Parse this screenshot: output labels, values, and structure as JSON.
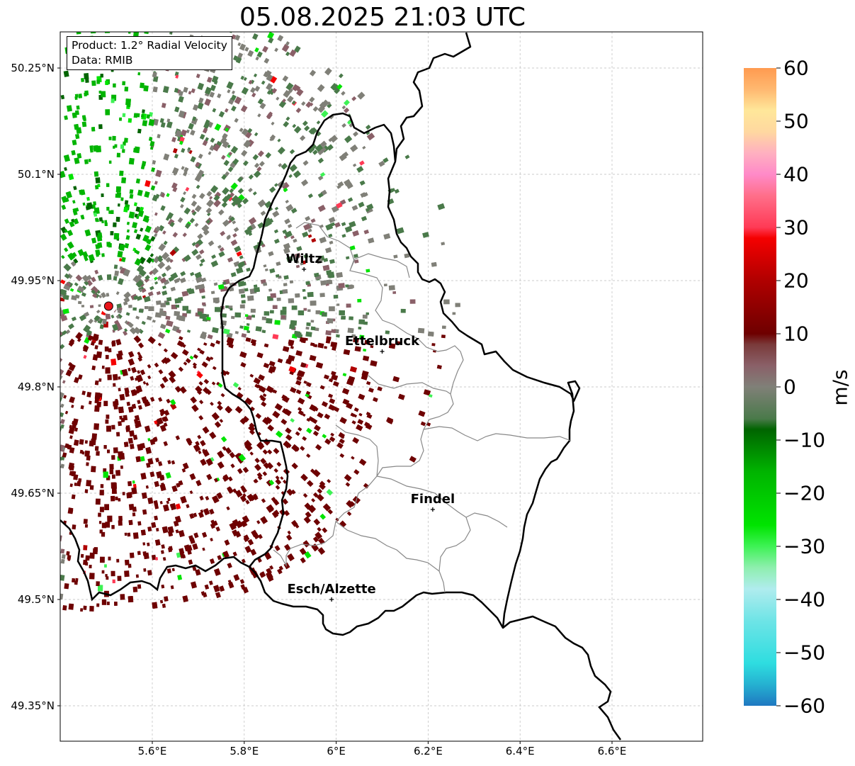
{
  "title": "05.08.2025 21:03 UTC",
  "info_box": {
    "product": "Product: 1.2° Radial Velocity",
    "data": "Data: RMIB"
  },
  "map": {
    "extent": {
      "lon": [
        5.4,
        6.8
      ],
      "lat": [
        49.3,
        50.3
      ]
    },
    "lat_ticks": [
      {
        "value": 50.25,
        "label": "50.25°N"
      },
      {
        "value": 50.1,
        "label": "50.1°N"
      },
      {
        "value": 49.95,
        "label": "49.95°N"
      },
      {
        "value": 49.8,
        "label": "49.8°N"
      },
      {
        "value": 49.65,
        "label": "49.65°N"
      },
      {
        "value": 49.5,
        "label": "49.5°N"
      },
      {
        "value": 49.35,
        "label": "49.35°N"
      }
    ],
    "lon_ticks": [
      {
        "value": 5.6,
        "label": "5.6°E"
      },
      {
        "value": 5.8,
        "label": "5.8°E"
      },
      {
        "value": 6.0,
        "label": "6°E"
      },
      {
        "value": 6.2,
        "label": "6.2°E"
      },
      {
        "value": 6.4,
        "label": "6.4°E"
      },
      {
        "value": 6.6,
        "label": "6.6°E"
      }
    ],
    "gridlines": true,
    "radar_site": {
      "lon": 5.505,
      "lat": 49.914,
      "color": "#e8141a"
    },
    "cities": [
      {
        "name": "Wiltz",
        "lon": 5.93,
        "lat": 49.966
      },
      {
        "name": "Ettelbruck",
        "lon": 6.1,
        "lat": 49.85
      },
      {
        "name": "Findel",
        "lon": 6.21,
        "lat": 49.627
      },
      {
        "name": "Esch/Alzette",
        "lon": 5.99,
        "lat": 49.5
      }
    ]
  },
  "colorbar": {
    "unit": "m/s",
    "min": -60,
    "max": 60,
    "ticks": [
      {
        "value": 60,
        "label": "60"
      },
      {
        "value": 50,
        "label": "50"
      },
      {
        "value": 40,
        "label": "40"
      },
      {
        "value": 30,
        "label": "30"
      },
      {
        "value": 20,
        "label": "20"
      },
      {
        "value": 10,
        "label": "10"
      },
      {
        "value": 0,
        "label": "0"
      },
      {
        "value": -10,
        "label": "−10"
      },
      {
        "value": -20,
        "label": "−20"
      },
      {
        "value": -30,
        "label": "−30"
      },
      {
        "value": -40,
        "label": "−40"
      },
      {
        "value": -50,
        "label": "−50"
      },
      {
        "value": -60,
        "label": "−60"
      }
    ],
    "color_stops": [
      {
        "value": -60,
        "color": "#1f78c1"
      },
      {
        "value": -56,
        "color": "#25b1d1"
      },
      {
        "value": -52,
        "color": "#2edde0"
      },
      {
        "value": -44,
        "color": "#6ee4e6"
      },
      {
        "value": -38,
        "color": "#b0ecee"
      },
      {
        "value": -34,
        "color": "#8eefae"
      },
      {
        "value": -30,
        "color": "#3ef255"
      },
      {
        "value": -26,
        "color": "#00e400"
      },
      {
        "value": -16,
        "color": "#00b400"
      },
      {
        "value": -8,
        "color": "#006400"
      },
      {
        "value": -6,
        "color": "#4a7a4a"
      },
      {
        "value": 0,
        "color": "#808078"
      },
      {
        "value": 4,
        "color": "#8a6068"
      },
      {
        "value": 8,
        "color": "#7a3a3a"
      },
      {
        "value": 10,
        "color": "#6e0000"
      },
      {
        "value": 20,
        "color": "#b00000"
      },
      {
        "value": 28,
        "color": "#f50000"
      },
      {
        "value": 30,
        "color": "#ff3a55"
      },
      {
        "value": 36,
        "color": "#ff6f8a"
      },
      {
        "value": 40,
        "color": "#ff8ac8"
      },
      {
        "value": 44,
        "color": "#ffb0c0"
      },
      {
        "value": 48,
        "color": "#ffd8a0"
      },
      {
        "value": 52,
        "color": "#ffe79a"
      },
      {
        "value": 56,
        "color": "#ffb870"
      },
      {
        "value": 60,
        "color": "#ff9a50"
      }
    ]
  }
}
